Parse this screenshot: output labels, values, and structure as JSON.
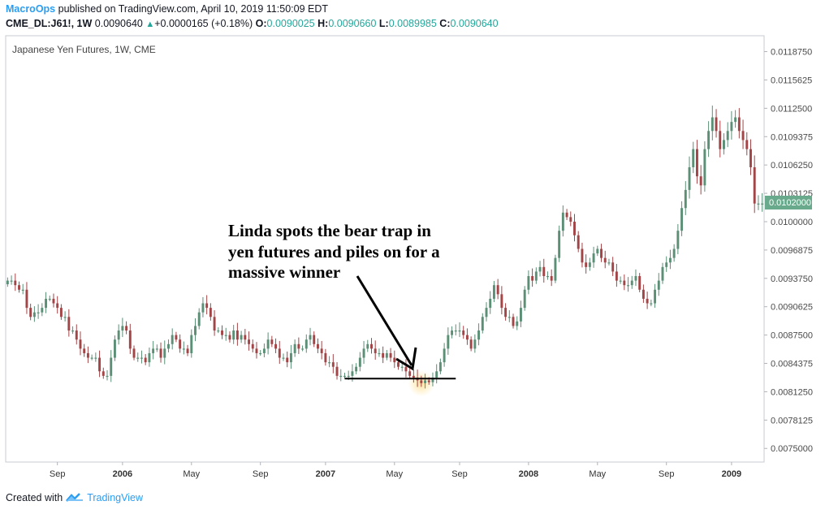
{
  "header": {
    "author": "MacroOps",
    "published_text": "published on TradingView.com, April 10, 2019 11:50:09 EDT",
    "symbol": "CME_DL:J61!, 1W",
    "last_price": "0.0090640",
    "change": "+0.0000165 (+0.18%)",
    "o_label": "O:",
    "o_value": "0.0090025",
    "h_label": "H:",
    "h_value": "0.0090660",
    "l_label": "L:",
    "l_value": "0.0089985",
    "c_label": "C:",
    "c_value": "0.0090640"
  },
  "footer": {
    "created_with": "Created with",
    "brand": "TradingView"
  },
  "chart_data": {
    "type": "candlestick",
    "title": "Japanese Yen Futures, 1W, CME",
    "annotation": "Linda spots the bear trap in yen futures and piles on for a massive winner",
    "last_price_label": "0.0102000",
    "y_ticks": [
      0.011875,
      0.0115625,
      0.01125,
      0.0109375,
      0.010625,
      0.0103125,
      0.01,
      0.0096875,
      0.009375,
      0.0090625,
      0.00875,
      0.0084375,
      0.008125,
      0.0078125,
      0.0075
    ],
    "y_tick_labels": [
      "0.0118750",
      "0.0115625",
      "0.0112500",
      "0.0109375",
      "0.0106250",
      "0.0103125",
      "0.0100000",
      "0.0096875",
      "0.0093750",
      "0.0090625",
      "0.0087500",
      "0.0084375",
      "0.0081250",
      "0.0078125",
      "0.0075000"
    ],
    "ylim": [
      0.00735,
      0.01205
    ],
    "x_labels": [
      {
        "label": "Sep",
        "week": 13,
        "bold": false
      },
      {
        "label": "2006",
        "week": 30,
        "bold": true
      },
      {
        "label": "May",
        "week": 48,
        "bold": false
      },
      {
        "label": "Sep",
        "week": 66,
        "bold": false
      },
      {
        "label": "2007",
        "week": 83,
        "bold": true
      },
      {
        "label": "May",
        "week": 101,
        "bold": false
      },
      {
        "label": "Sep",
        "week": 118,
        "bold": false
      },
      {
        "label": "2008",
        "week": 136,
        "bold": true
      },
      {
        "label": "May",
        "week": 154,
        "bold": false
      },
      {
        "label": "Sep",
        "week": 172,
        "bold": false
      },
      {
        "label": "2009",
        "week": 189,
        "bold": true
      }
    ],
    "support_line": {
      "price": 0.00827,
      "from_week": 88,
      "to_week": 117
    },
    "highlight_week": 108,
    "closes": [
      0.00935,
      0.00935,
      0.0093,
      0.00925,
      0.00925,
      0.00905,
      0.00895,
      0.009,
      0.009,
      0.00905,
      0.00915,
      0.00915,
      0.0091,
      0.00905,
      0.00895,
      0.00895,
      0.0088,
      0.0088,
      0.0087,
      0.0086,
      0.00855,
      0.0085,
      0.0085,
      0.0085,
      0.00835,
      0.0083,
      0.0083,
      0.0085,
      0.0087,
      0.0088,
      0.00885,
      0.0088,
      0.0086,
      0.0085,
      0.0085,
      0.0085,
      0.00845,
      0.00855,
      0.0086,
      0.0086,
      0.0085,
      0.0086,
      0.00865,
      0.00875,
      0.0087,
      0.0086,
      0.0086,
      0.00855,
      0.00875,
      0.00885,
      0.009,
      0.0091,
      0.00905,
      0.00895,
      0.0088,
      0.0088,
      0.00875,
      0.00875,
      0.0087,
      0.0088,
      0.0087,
      0.00875,
      0.0087,
      0.00865,
      0.0086,
      0.00855,
      0.00855,
      0.0086,
      0.0087,
      0.00865,
      0.0086,
      0.0085,
      0.0085,
      0.00845,
      0.00855,
      0.00865,
      0.0086,
      0.0086,
      0.0087,
      0.00875,
      0.00865,
      0.0086,
      0.00855,
      0.00845,
      0.00845,
      0.0084,
      0.0083,
      0.0083,
      0.0083,
      0.0083,
      0.00835,
      0.0084,
      0.0085,
      0.0086,
      0.00865,
      0.0086,
      0.00855,
      0.00855,
      0.0085,
      0.00855,
      0.0085,
      0.00845,
      0.0084,
      0.0084,
      0.00835,
      0.0083,
      0.00828,
      0.00825,
      0.00822,
      0.00825,
      0.00823,
      0.00828,
      0.00835,
      0.00845,
      0.0086,
      0.00875,
      0.0088,
      0.0088,
      0.0088,
      0.00875,
      0.0087,
      0.0086,
      0.0087,
      0.0088,
      0.00895,
      0.00905,
      0.00915,
      0.0093,
      0.0092,
      0.00905,
      0.00895,
      0.00895,
      0.00885,
      0.0089,
      0.00905,
      0.00925,
      0.0094,
      0.00935,
      0.00945,
      0.0095,
      0.0094,
      0.0094,
      0.00935,
      0.0096,
      0.0099,
      0.0101,
      0.01005,
      0.01,
      0.00985,
      0.0097,
      0.00955,
      0.0095,
      0.00955,
      0.00965,
      0.0097,
      0.0096,
      0.00955,
      0.00955,
      0.00945,
      0.00935,
      0.00935,
      0.0093,
      0.0093,
      0.00935,
      0.0094,
      0.00925,
      0.00915,
      0.0091,
      0.0091,
      0.00925,
      0.00935,
      0.0095,
      0.00955,
      0.0096,
      0.0097,
      0.0099,
      0.01015,
      0.01035,
      0.0106,
      0.0108,
      0.0105,
      0.0104,
      0.0108,
      0.011,
      0.01115,
      0.011,
      0.0108,
      0.0109,
      0.011,
      0.0111,
      0.01115,
      0.011,
      0.0109,
      0.0108,
      0.0106,
      0.0102,
      0.0102,
      0.0102
    ]
  }
}
